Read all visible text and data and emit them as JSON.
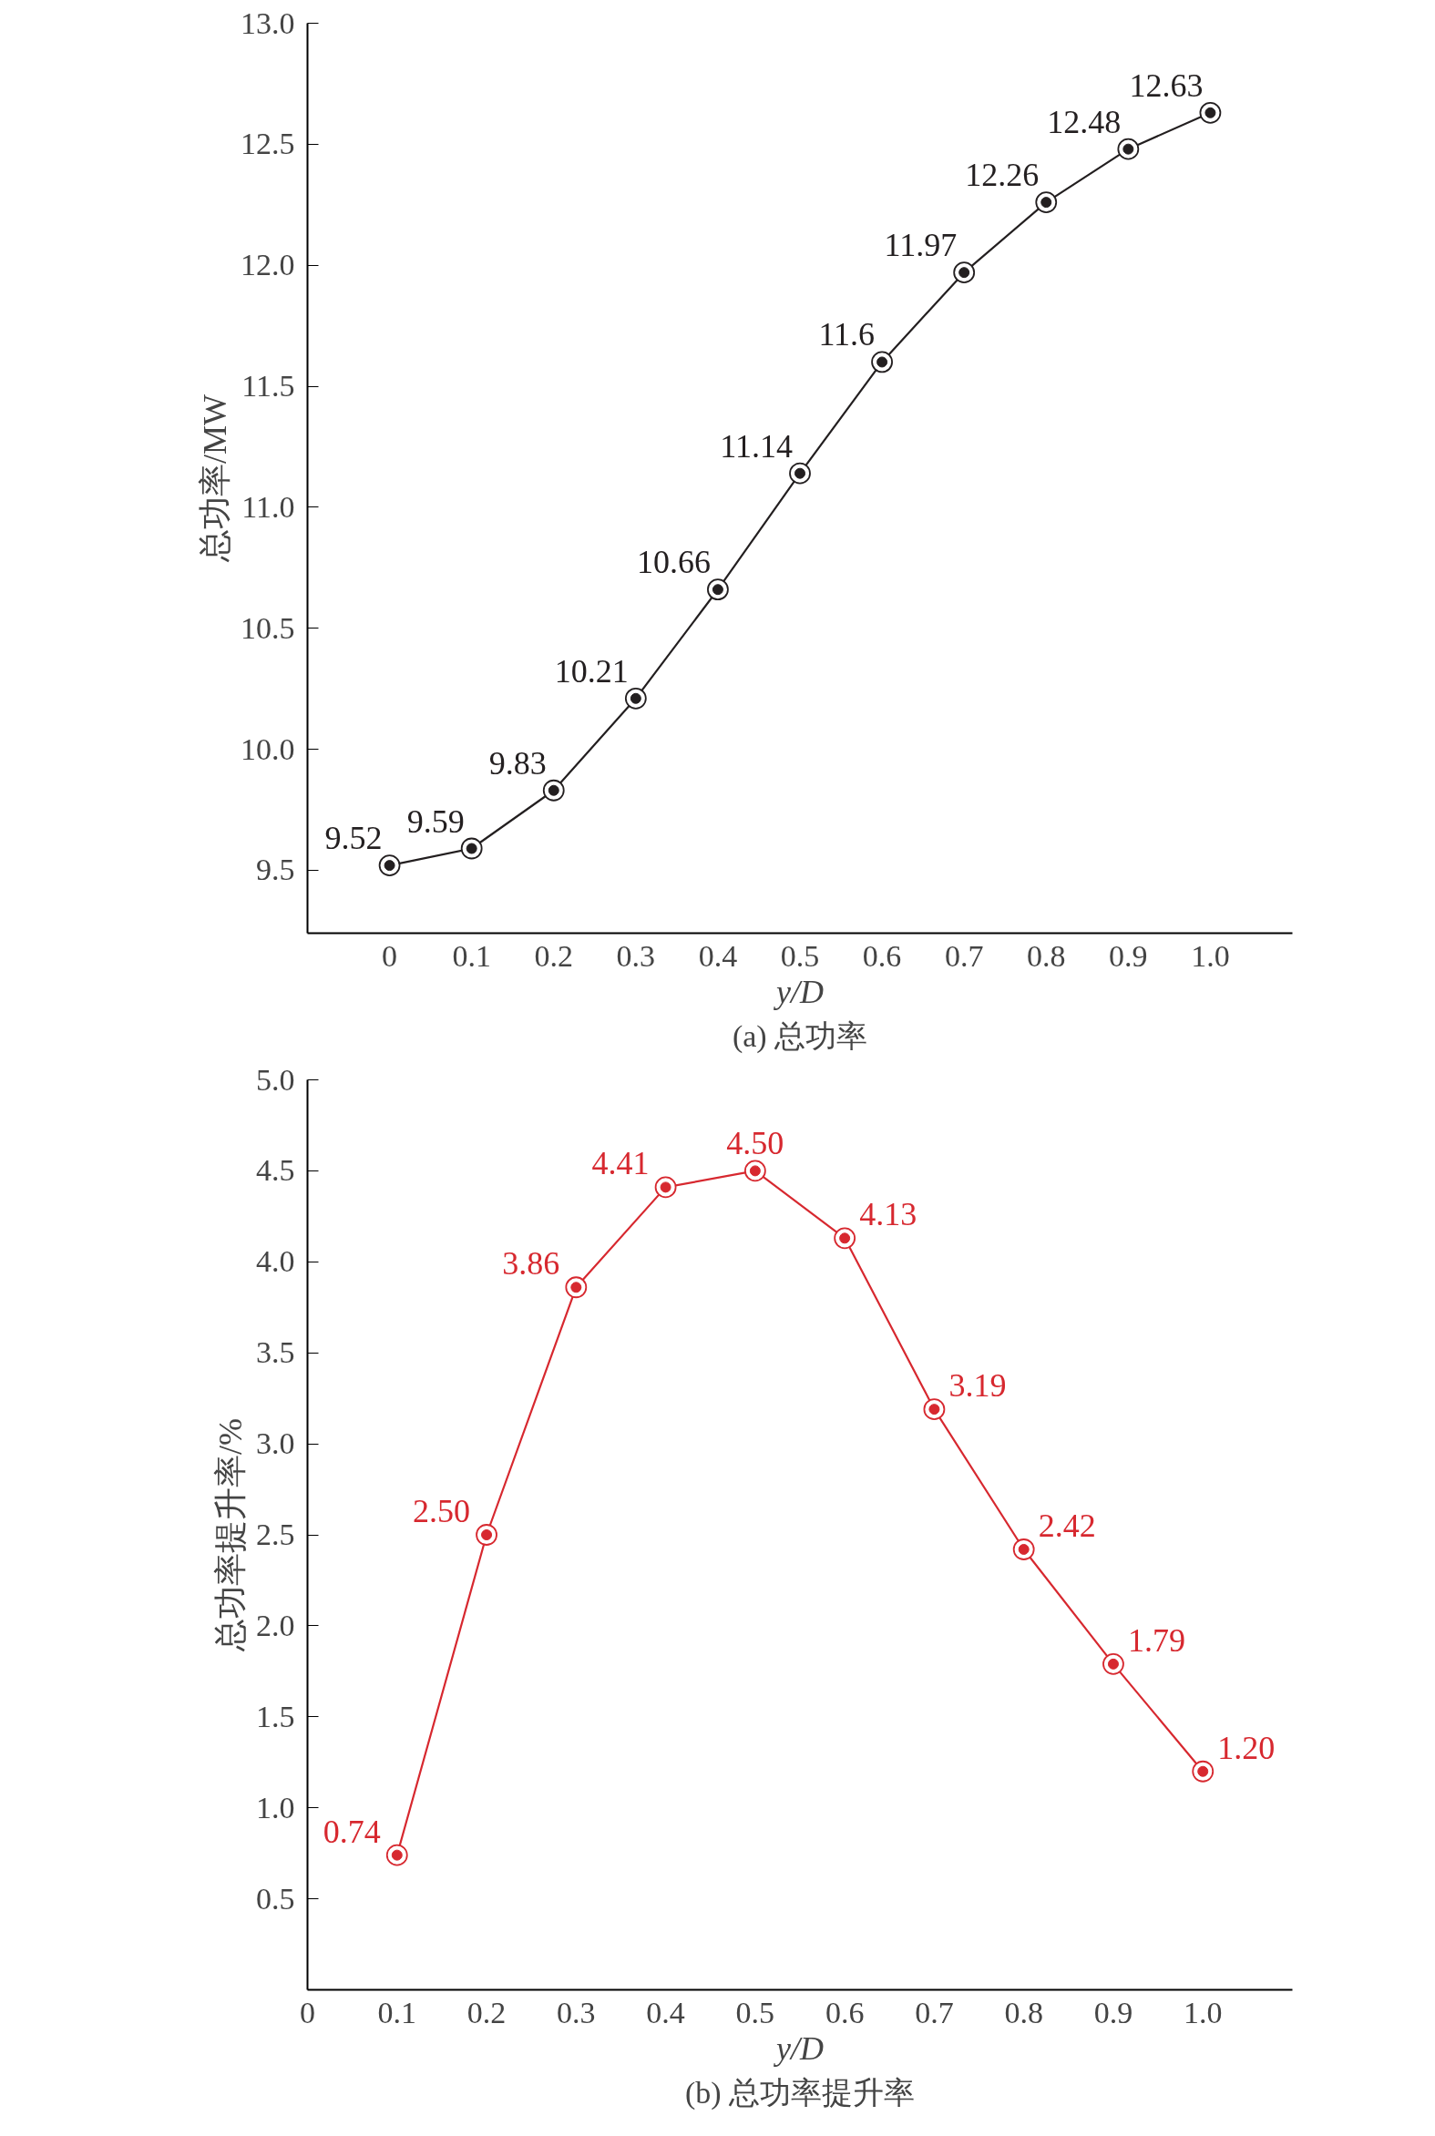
{
  "chart_data": [
    {
      "type": "line",
      "title": "(a) 总功率",
      "xlabel": "y/D",
      "ylabel": "总功率/MW",
      "x": [
        0,
        0.1,
        0.2,
        0.3,
        0.4,
        0.5,
        0.6,
        0.7,
        0.8,
        0.9,
        1.0
      ],
      "series": [
        {
          "color": "#231f20",
          "values": [
            9.52,
            9.59,
            9.83,
            10.21,
            10.66,
            11.14,
            11.6,
            11.97,
            12.26,
            12.48,
            12.63
          ]
        }
      ],
      "xlim": [
        -0.1,
        1.1
      ],
      "xticks": [
        0,
        0.1,
        0.2,
        0.3,
        0.4,
        0.5,
        0.6,
        0.7,
        0.8,
        0.9,
        {
          "value": 1.0,
          "label": "1.0"
        }
      ],
      "ylim": [
        9.24,
        13.0
      ],
      "yticks": [
        9.5,
        {
          "value": 10,
          "label": "10.0"
        },
        10.5,
        {
          "value": 11,
          "label": "11.0"
        },
        11.5,
        {
          "value": 12,
          "label": "12.0"
        },
        12.5,
        {
          "value": 13,
          "label": "13.0"
        }
      ],
      "data_labels": true,
      "grid": false,
      "marker": "circle",
      "line_style": "solid"
    },
    {
      "type": "line",
      "title": "(b) 总功率提升率",
      "xlabel": "y/D",
      "ylabel": "总功率提升率/%",
      "x": [
        0.1,
        0.2,
        0.3,
        0.4,
        0.5,
        0.6,
        0.7,
        0.8,
        0.9,
        1.0
      ],
      "series": [
        {
          "color": "#d7282f",
          "values": [
            0.74,
            2.5,
            3.86,
            4.41,
            4.5,
            4.13,
            3.19,
            2.42,
            1.79,
            1.2
          ],
          "value_labels": [
            "0.74",
            "2.50",
            "3.86",
            "4.41",
            "4.50",
            "4.13",
            "3.19",
            "2.42",
            "1.79",
            "1.20"
          ]
        }
      ],
      "xlim": [
        0,
        1.1
      ],
      "xticks": [
        0,
        0.1,
        0.2,
        0.3,
        0.4,
        0.5,
        0.6,
        0.7,
        0.8,
        0.9,
        {
          "value": 1.0,
          "label": "1.0"
        }
      ],
      "ylim": [
        0,
        5.0
      ],
      "yticks": [
        0.5,
        {
          "value": 1,
          "label": "1.0"
        },
        1.5,
        {
          "value": 2,
          "label": "2.0"
        },
        2.5,
        {
          "value": 3,
          "label": "3.0"
        },
        3.5,
        {
          "value": 4,
          "label": "4.0"
        },
        4.5,
        {
          "value": 5,
          "label": "5.0"
        }
      ],
      "grid": false,
      "marker": "circle",
      "line_style": "solid"
    }
  ]
}
